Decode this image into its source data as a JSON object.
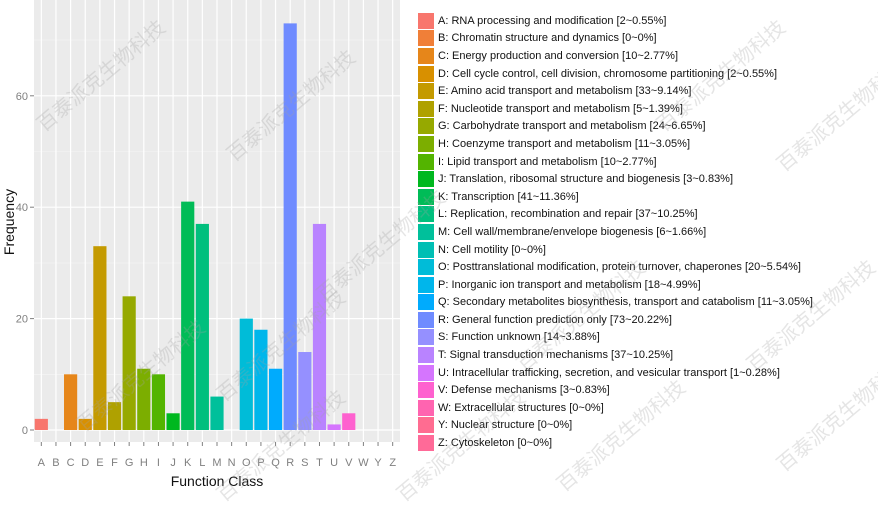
{
  "chart_data": {
    "type": "bar",
    "title": "",
    "xlabel": "Function Class",
    "ylabel": "Frequency",
    "ylim": [
      0,
      74
    ],
    "yticks": [
      0,
      20,
      40,
      60
    ],
    "grid": true,
    "legend_position": "right",
    "categories": [
      "A",
      "B",
      "C",
      "D",
      "E",
      "F",
      "G",
      "H",
      "I",
      "J",
      "K",
      "L",
      "M",
      "N",
      "O",
      "P",
      "Q",
      "R",
      "S",
      "T",
      "U",
      "V",
      "W",
      "Y",
      "Z"
    ],
    "values": [
      2,
      0,
      10,
      2,
      33,
      5,
      24,
      11,
      10,
      3,
      41,
      37,
      6,
      0,
      20,
      18,
      11,
      73,
      14,
      37,
      1,
      3,
      0,
      0,
      0
    ],
    "colors": [
      "#F8766D",
      "#F07F38",
      "#E6861A",
      "#D89000",
      "#C49A00",
      "#AFA100",
      "#96A900",
      "#7CAE00",
      "#53B400",
      "#00B81F",
      "#00BC57",
      "#00BF7D",
      "#00C09B",
      "#00BFB4",
      "#00BCD8",
      "#00B6EB",
      "#00ABFD",
      "#6F8BFF",
      "#9590FF",
      "#B983FF",
      "#D575FE",
      "#FE61CF",
      "#FF64B0",
      "#FF6C91",
      "#FF6A98"
    ],
    "legend": [
      "A: RNA processing and modification [2~0.55%]",
      "B: Chromatin structure and dynamics [0~0%]",
      "C: Energy production and conversion [10~2.77%]",
      "D: Cell cycle control, cell division, chromosome partitioning [2~0.55%]",
      "E: Amino acid transport and metabolism [33~9.14%]",
      "F: Nucleotide transport and metabolism [5~1.39%]",
      "G: Carbohydrate transport and metabolism [24~6.65%]",
      "H: Coenzyme transport and metabolism [11~3.05%]",
      "I: Lipid transport and metabolism [10~2.77%]",
      "J: Translation, ribosomal structure and biogenesis [3~0.83%]",
      "K: Transcription [41~11.36%]",
      "L: Replication, recombination and repair [37~10.25%]",
      "M: Cell wall/membrane/envelope biogenesis [6~1.66%]",
      "N: Cell motility [0~0%]",
      "O: Posttranslational modification, protein turnover, chaperones [20~5.54%]",
      "P: Inorganic ion transport and metabolism [18~4.99%]",
      "Q: Secondary metabolites biosynthesis, transport and catabolism [11~3.05%]",
      "R: General function prediction only [73~20.22%]",
      "S: Function unknown [14~3.88%]",
      "T: Signal transduction mechanisms [37~10.25%]",
      "U: Intracellular trafficking, secretion, and vesicular transport [1~0.28%]",
      "V: Defense mechanisms [3~0.83%]",
      "W: Extracellular structures [0~0%]",
      "Y: Nuclear structure [0~0%]",
      "Z: Cytoskeleton [0~0%]"
    ]
  },
  "watermark": {
    "text": "百泰派克生物科技"
  }
}
